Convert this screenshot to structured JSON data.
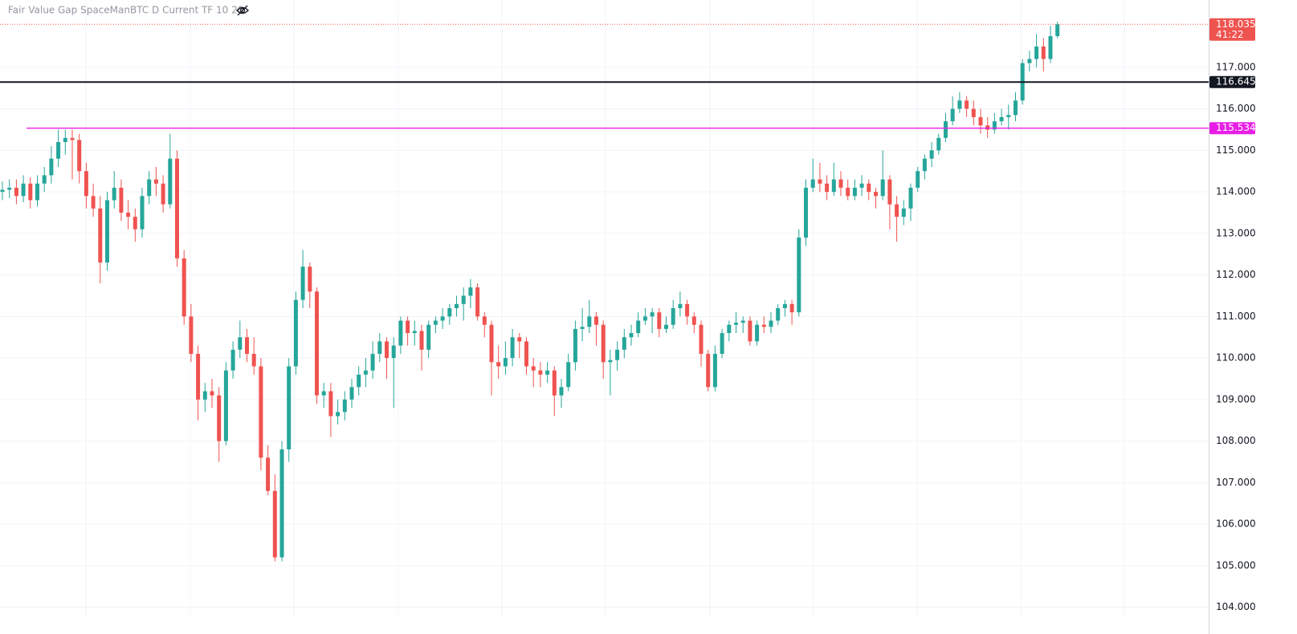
{
  "chart_data": {
    "type": "candlestick",
    "title": "Fair Value Gap SpaceManBTC D Current TF 10 20",
    "ylim": [
      103.78,
      118.62
    ],
    "yticks": [
      {
        "value": 104,
        "label": "104.000"
      },
      {
        "value": 105,
        "label": "105.000"
      },
      {
        "value": 106,
        "label": "106.000"
      },
      {
        "value": 107,
        "label": "107.000"
      },
      {
        "value": 108,
        "label": "108.000"
      },
      {
        "value": 109,
        "label": "109.000"
      },
      {
        "value": 110,
        "label": "110.000"
      },
      {
        "value": 111,
        "label": "111.000"
      },
      {
        "value": 112,
        "label": "112.000"
      },
      {
        "value": 113,
        "label": "113.000"
      },
      {
        "value": 114,
        "label": "114.000"
      },
      {
        "value": 115,
        "label": "115.000"
      },
      {
        "value": 116,
        "label": "116.000"
      },
      {
        "value": 117,
        "label": "117.000"
      }
    ],
    "grid": true,
    "up_color": "#26a69a",
    "down_color": "#ef5350",
    "levels": [
      {
        "value": 118.035,
        "label": "118.035",
        "color": "#ef5350",
        "style": "dotted",
        "countdown": "41:22"
      },
      {
        "value": 116.645,
        "label": "116.645",
        "color": "#131722",
        "style": "solid"
      },
      {
        "value": 115.534,
        "label": "115.534",
        "color": "#e91ee6",
        "style": "solid"
      }
    ],
    "candles": [
      [
        114.0,
        114.25,
        113.8,
        114.05
      ],
      [
        114.05,
        114.3,
        113.85,
        114.1
      ],
      [
        114.1,
        114.3,
        113.7,
        113.9
      ],
      [
        113.9,
        114.4,
        113.75,
        114.2
      ],
      [
        114.2,
        114.35,
        113.6,
        113.8
      ],
      [
        113.8,
        114.4,
        113.65,
        114.2
      ],
      [
        114.2,
        114.6,
        114.0,
        114.4
      ],
      [
        114.4,
        115.1,
        114.2,
        114.8
      ],
      [
        114.8,
        115.5,
        114.6,
        115.2
      ],
      [
        115.2,
        115.5,
        114.9,
        115.3
      ],
      [
        115.3,
        115.5,
        114.3,
        115.25
      ],
      [
        115.25,
        115.4,
        114.2,
        114.5
      ],
      [
        114.5,
        114.7,
        113.6,
        113.9
      ],
      [
        113.9,
        114.2,
        113.4,
        113.6
      ],
      [
        113.6,
        113.9,
        111.8,
        112.3
      ],
      [
        112.3,
        114.0,
        112.1,
        113.8
      ],
      [
        113.8,
        114.5,
        113.6,
        114.1
      ],
      [
        114.1,
        114.3,
        113.3,
        113.5
      ],
      [
        113.5,
        113.8,
        113.1,
        113.4
      ],
      [
        113.4,
        113.6,
        112.8,
        113.1
      ],
      [
        113.1,
        114.1,
        112.9,
        113.9
      ],
      [
        113.9,
        114.5,
        113.7,
        114.3
      ],
      [
        114.3,
        114.6,
        113.9,
        114.2
      ],
      [
        114.2,
        114.4,
        113.5,
        113.7
      ],
      [
        113.7,
        115.4,
        113.6,
        114.8
      ],
      [
        114.8,
        115.0,
        112.2,
        112.4
      ],
      [
        112.4,
        112.6,
        110.8,
        111.0
      ],
      [
        111.0,
        111.3,
        109.9,
        110.1
      ],
      [
        110.1,
        110.3,
        108.5,
        109.0
      ],
      [
        109.0,
        109.4,
        108.7,
        109.2
      ],
      [
        109.2,
        109.5,
        108.8,
        109.1
      ],
      [
        109.1,
        109.3,
        107.5,
        108.0
      ],
      [
        108.0,
        109.9,
        107.9,
        109.7
      ],
      [
        109.7,
        110.4,
        109.5,
        110.2
      ],
      [
        110.2,
        110.9,
        110.0,
        110.5
      ],
      [
        110.5,
        110.7,
        109.9,
        110.1
      ],
      [
        110.1,
        110.5,
        109.6,
        109.8
      ],
      [
        109.8,
        110.0,
        107.3,
        107.6
      ],
      [
        107.6,
        107.9,
        106.7,
        106.8
      ],
      [
        106.8,
        107.2,
        105.1,
        105.2
      ],
      [
        105.2,
        108.0,
        105.1,
        107.8
      ],
      [
        107.8,
        110.0,
        107.5,
        109.8
      ],
      [
        109.8,
        111.6,
        109.6,
        111.4
      ],
      [
        111.4,
        112.6,
        111.2,
        112.2
      ],
      [
        112.2,
        112.3,
        111.2,
        111.6
      ],
      [
        111.6,
        111.7,
        108.9,
        109.1
      ],
      [
        109.1,
        109.4,
        108.8,
        109.2
      ],
      [
        109.2,
        109.4,
        108.1,
        108.6
      ],
      [
        108.6,
        109.0,
        108.4,
        108.7
      ],
      [
        108.7,
        109.2,
        108.5,
        109.0
      ],
      [
        109.0,
        109.5,
        108.8,
        109.3
      ],
      [
        109.3,
        109.8,
        109.1,
        109.6
      ],
      [
        109.6,
        110.0,
        109.3,
        109.7
      ],
      [
        109.7,
        110.4,
        109.5,
        110.1
      ],
      [
        110.1,
        110.6,
        109.9,
        110.4
      ],
      [
        110.4,
        110.5,
        109.5,
        110.0
      ],
      [
        110.0,
        110.5,
        108.8,
        110.3
      ],
      [
        110.3,
        111.0,
        110.1,
        110.9
      ],
      [
        110.9,
        111.0,
        110.3,
        110.6
      ],
      [
        110.6,
        110.9,
        110.3,
        110.65
      ],
      [
        110.65,
        110.8,
        109.7,
        110.2
      ],
      [
        110.2,
        110.9,
        110.0,
        110.8
      ],
      [
        110.8,
        111.0,
        110.6,
        110.9
      ],
      [
        110.9,
        111.2,
        110.7,
        111.0
      ],
      [
        111.0,
        111.3,
        110.8,
        111.2
      ],
      [
        111.2,
        111.5,
        111.0,
        111.3
      ],
      [
        111.3,
        111.7,
        110.9,
        111.5
      ],
      [
        111.5,
        111.9,
        111.2,
        111.7
      ],
      [
        111.7,
        111.8,
        110.9,
        111.0
      ],
      [
        111.0,
        111.1,
        110.5,
        110.8
      ],
      [
        110.8,
        110.9,
        109.1,
        109.9
      ],
      [
        109.9,
        110.3,
        109.5,
        109.8
      ],
      [
        109.8,
        110.4,
        109.6,
        110.0
      ],
      [
        110.0,
        110.7,
        109.8,
        110.5
      ],
      [
        110.5,
        110.6,
        110.0,
        110.4
      ],
      [
        110.4,
        110.5,
        109.6,
        109.8
      ],
      [
        109.8,
        110.0,
        109.3,
        109.7
      ],
      [
        109.7,
        109.9,
        109.3,
        109.6
      ],
      [
        109.6,
        109.9,
        109.4,
        109.7
      ],
      [
        109.7,
        109.8,
        108.6,
        109.1
      ],
      [
        109.1,
        109.5,
        108.8,
        109.3
      ],
      [
        109.3,
        110.1,
        109.2,
        109.9
      ],
      [
        109.9,
        110.9,
        109.7,
        110.7
      ],
      [
        110.7,
        111.2,
        110.4,
        110.75
      ],
      [
        110.75,
        111.4,
        110.6,
        111.0
      ],
      [
        111.0,
        111.1,
        110.3,
        110.8
      ],
      [
        110.8,
        110.9,
        109.5,
        109.9
      ],
      [
        109.9,
        110.2,
        109.1,
        109.95
      ],
      [
        109.95,
        110.4,
        109.7,
        110.2
      ],
      [
        110.2,
        110.7,
        110.0,
        110.5
      ],
      [
        110.5,
        110.8,
        110.3,
        110.6
      ],
      [
        110.6,
        111.1,
        110.5,
        110.9
      ],
      [
        110.9,
        111.2,
        110.8,
        111.0
      ],
      [
        111.0,
        111.2,
        110.6,
        111.1
      ],
      [
        111.1,
        111.2,
        110.5,
        110.7
      ],
      [
        110.7,
        111.0,
        110.6,
        110.8
      ],
      [
        110.8,
        111.4,
        110.7,
        111.2
      ],
      [
        111.2,
        111.6,
        111.0,
        111.3
      ],
      [
        111.3,
        111.4,
        110.8,
        111.0
      ],
      [
        111.0,
        111.1,
        110.6,
        110.8
      ],
      [
        110.8,
        110.9,
        109.8,
        110.1
      ],
      [
        110.1,
        110.2,
        109.2,
        109.3
      ],
      [
        109.3,
        110.3,
        109.2,
        110.1
      ],
      [
        110.1,
        110.7,
        110.0,
        110.6
      ],
      [
        110.6,
        110.9,
        110.4,
        110.8
      ],
      [
        110.8,
        111.1,
        110.6,
        110.85
      ],
      [
        110.85,
        111.0,
        110.6,
        110.9
      ],
      [
        110.9,
        111.0,
        110.3,
        110.4
      ],
      [
        110.4,
        110.9,
        110.3,
        110.8
      ],
      [
        110.8,
        111.0,
        110.6,
        110.75
      ],
      [
        110.75,
        111.1,
        110.6,
        110.9
      ],
      [
        110.9,
        111.3,
        110.8,
        111.2
      ],
      [
        111.2,
        111.4,
        111.0,
        111.3
      ],
      [
        111.3,
        111.4,
        110.8,
        111.1
      ],
      [
        111.1,
        113.1,
        111.0,
        112.9
      ],
      [
        112.9,
        114.3,
        112.7,
        114.1
      ],
      [
        114.1,
        114.8,
        114.0,
        114.3
      ],
      [
        114.3,
        114.7,
        114.0,
        114.2
      ],
      [
        114.2,
        114.4,
        113.8,
        114.0
      ],
      [
        114.0,
        114.7,
        113.9,
        114.3
      ],
      [
        114.3,
        114.5,
        113.9,
        114.1
      ],
      [
        114.1,
        114.3,
        113.8,
        113.9
      ],
      [
        113.9,
        114.3,
        113.8,
        114.1
      ],
      [
        114.1,
        114.4,
        113.9,
        114.2
      ],
      [
        114.2,
        114.3,
        113.8,
        114.0
      ],
      [
        114.0,
        114.1,
        113.6,
        113.9
      ],
      [
        113.9,
        115.0,
        113.8,
        114.3
      ],
      [
        114.3,
        114.4,
        113.1,
        113.7
      ],
      [
        113.7,
        113.9,
        112.8,
        113.4
      ],
      [
        113.4,
        113.8,
        113.2,
        113.6
      ],
      [
        113.6,
        114.2,
        113.3,
        114.1
      ],
      [
        114.1,
        114.6,
        114.0,
        114.5
      ],
      [
        114.5,
        114.9,
        114.3,
        114.8
      ],
      [
        114.8,
        115.2,
        114.6,
        115.0
      ],
      [
        115.0,
        115.4,
        114.9,
        115.3
      ],
      [
        115.3,
        115.9,
        115.2,
        115.7
      ],
      [
        115.7,
        116.3,
        115.6,
        116.0
      ],
      [
        116.0,
        116.4,
        115.9,
        116.2
      ],
      [
        116.2,
        116.3,
        115.8,
        116.0
      ],
      [
        116.0,
        116.2,
        115.6,
        115.8
      ],
      [
        115.8,
        116.0,
        115.4,
        115.6
      ],
      [
        115.6,
        115.8,
        115.3,
        115.5
      ],
      [
        115.5,
        115.9,
        115.4,
        115.7
      ],
      [
        115.7,
        116.0,
        115.6,
        115.8
      ],
      [
        115.8,
        116.1,
        115.5,
        115.85
      ],
      [
        115.85,
        116.4,
        115.7,
        116.2
      ],
      [
        116.2,
        117.2,
        116.1,
        117.1
      ],
      [
        117.1,
        117.4,
        116.9,
        117.2
      ],
      [
        117.2,
        117.8,
        117.0,
        117.5
      ],
      [
        117.5,
        117.7,
        116.9,
        117.2
      ],
      [
        117.2,
        118.0,
        117.1,
        117.75
      ],
      [
        117.75,
        118.1,
        117.7,
        118.035
      ]
    ]
  }
}
